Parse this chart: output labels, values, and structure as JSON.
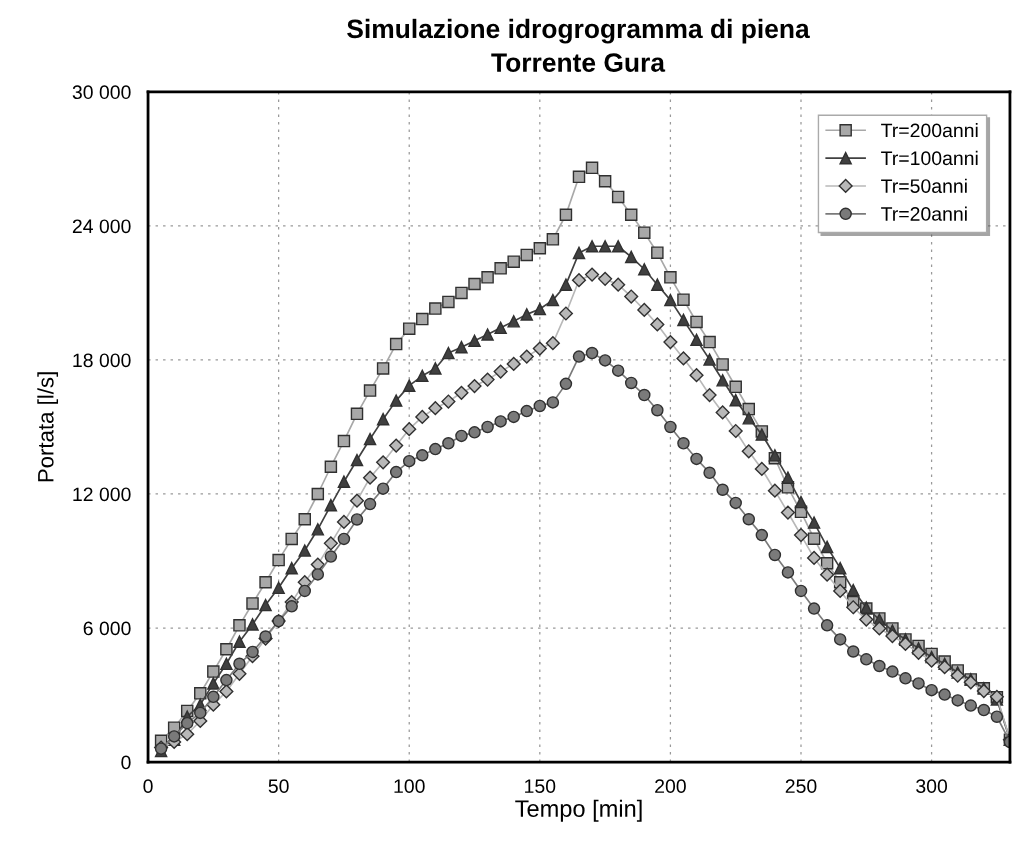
{
  "chart_data": {
    "type": "line",
    "title": "Simulazione idrogrogramma di piena",
    "subtitle": "Torrente Gura",
    "xlabel": "Tempo [min]",
    "ylabel": "Portata [l/s]",
    "x": [
      5,
      10,
      15,
      20,
      25,
      30,
      35,
      40,
      45,
      50,
      55,
      60,
      65,
      70,
      75,
      80,
      85,
      90,
      95,
      100,
      105,
      110,
      115,
      120,
      125,
      130,
      135,
      140,
      145,
      150,
      155,
      160,
      165,
      170,
      175,
      180,
      185,
      190,
      195,
      200,
      205,
      210,
      215,
      220,
      225,
      230,
      235,
      240,
      245,
      250,
      255,
      260,
      265,
      270,
      275,
      280,
      285,
      290,
      295,
      300,
      305,
      310,
      315,
      320,
      325,
      330
    ],
    "series": [
      {
        "name": "Tr=200anni",
        "color": "#a8a8a8",
        "marker": "square",
        "values": [
          950,
          1540,
          2290,
          3080,
          4050,
          5050,
          6120,
          7100,
          8050,
          9040,
          9990,
          10870,
          12000,
          13220,
          14370,
          15590,
          16630,
          17620,
          18710,
          19400,
          19830,
          20300,
          20600,
          21000,
          21400,
          21700,
          22100,
          22400,
          22700,
          23000,
          23400,
          24500,
          26200,
          26600,
          26000,
          25300,
          24500,
          23700,
          22800,
          21700,
          20700,
          19700,
          18800,
          17800,
          16800,
          15800,
          14800,
          13600,
          12300,
          11200,
          10000,
          8900,
          8050,
          7160,
          6870,
          6430,
          5980,
          5490,
          5200,
          4840,
          4500,
          4100,
          3700,
          3300,
          2900,
          1000
        ]
      },
      {
        "name": "Tr=100anni",
        "color": "#404040",
        "marker": "triangle",
        "values": [
          500,
          1000,
          2030,
          2570,
          3520,
          4400,
          5390,
          6160,
          7030,
          7800,
          8680,
          9470,
          10420,
          11500,
          12550,
          13520,
          14460,
          15350,
          16180,
          16850,
          17290,
          17620,
          18310,
          18570,
          18860,
          19140,
          19440,
          19730,
          20040,
          20280,
          20680,
          21370,
          22790,
          23090,
          23090,
          23090,
          22610,
          22060,
          21370,
          20680,
          19790,
          18900,
          18020,
          17090,
          16200,
          15390,
          14660,
          13730,
          12730,
          11640,
          10720,
          9630,
          8680,
          7700,
          6910,
          6380,
          5880,
          5490,
          5090,
          4700,
          4400,
          4010,
          3700,
          3300,
          2800,
          1000
        ]
      },
      {
        "name": "Tr=50anni",
        "color": "#b8b8b8",
        "marker": "diamond",
        "values": [
          650,
          900,
          1250,
          1840,
          2570,
          3160,
          3950,
          4740,
          5530,
          6310,
          7160,
          8050,
          8840,
          9790,
          10750,
          11700,
          12730,
          13420,
          14170,
          14900,
          15450,
          15840,
          16140,
          16530,
          16830,
          17120,
          17480,
          17820,
          18150,
          18510,
          18750,
          20080,
          21570,
          21820,
          21630,
          21370,
          20840,
          20240,
          19590,
          18800,
          18070,
          17320,
          16430,
          15650,
          14820,
          13910,
          13120,
          12150,
          11170,
          10160,
          9140,
          8390,
          7660,
          6930,
          6380,
          5980,
          5640,
          5290,
          4890,
          4540,
          4250,
          3870,
          3570,
          3180,
          2920,
          1000
        ]
      },
      {
        "name": "Tr=20anni",
        "color": "#7a7a7a",
        "marker": "circle",
        "values": [
          600,
          1150,
          1740,
          2200,
          2920,
          3670,
          4400,
          4930,
          5620,
          6310,
          6970,
          7660,
          8400,
          9200,
          9990,
          10860,
          11550,
          12240,
          12980,
          13470,
          13730,
          14010,
          14270,
          14600,
          14760,
          15000,
          15250,
          15450,
          15710,
          15940,
          16100,
          16930,
          18150,
          18310,
          17980,
          17520,
          16970,
          16430,
          15750,
          15000,
          14270,
          13570,
          12950,
          12190,
          11600,
          10870,
          10160,
          9270,
          8490,
          7660,
          6870,
          6120,
          5490,
          4950,
          4600,
          4300,
          4050,
          3750,
          3520,
          3220,
          3020,
          2760,
          2530,
          2330,
          2030,
          900
        ]
      }
    ],
    "xlim": [
      0,
      330
    ],
    "xticks": [
      0,
      50,
      100,
      150,
      200,
      250,
      300
    ],
    "ylim": [
      0,
      30000
    ],
    "yticks": [
      0,
      {
        "value": 6000,
        "label": "6 000"
      },
      {
        "value": 12000,
        "label": "12 000"
      },
      {
        "value": 18000,
        "label": "18 000"
      },
      {
        "value": 24000,
        "label": "24 000"
      },
      {
        "value": 30000,
        "label": "30 000"
      }
    ],
    "grid": true,
    "legend": "top right",
    "line_style": "solid"
  }
}
